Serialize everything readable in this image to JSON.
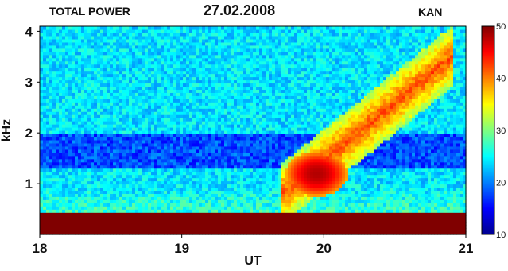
{
  "header": {
    "left": "TOTAL POWER",
    "date": "27.02.2008",
    "right": "KAN"
  },
  "chart_data": {
    "type": "heatmap",
    "title": "27.02.2008",
    "xlabel": "UT",
    "ylabel": "kHz",
    "xlim": [
      18,
      21
    ],
    "ylim": [
      0,
      4.1
    ],
    "x_ticks": [
      18,
      19,
      20,
      21
    ],
    "y_ticks": [
      1,
      2,
      3,
      4
    ],
    "colorbar": {
      "ticks": [
        10,
        20,
        30,
        40,
        50
      ],
      "range": [
        10,
        50
      ],
      "colormap": "jet"
    },
    "features": {
      "background_level": 25,
      "low_band_level": 50,
      "low_band_max_khz": 0.45,
      "intense_emission": {
        "time_center": 19.95,
        "freq_center_khz": 1.2,
        "level": 48
      },
      "rising_tone": {
        "time_start": 19.7,
        "time_end": 20.9,
        "freq_start_khz": 0.8,
        "freq_end_khz": 3.5,
        "level": 40
      }
    }
  },
  "colors": {
    "low": "#00008f",
    "mid": "#7fff7f",
    "high": "#800000"
  }
}
